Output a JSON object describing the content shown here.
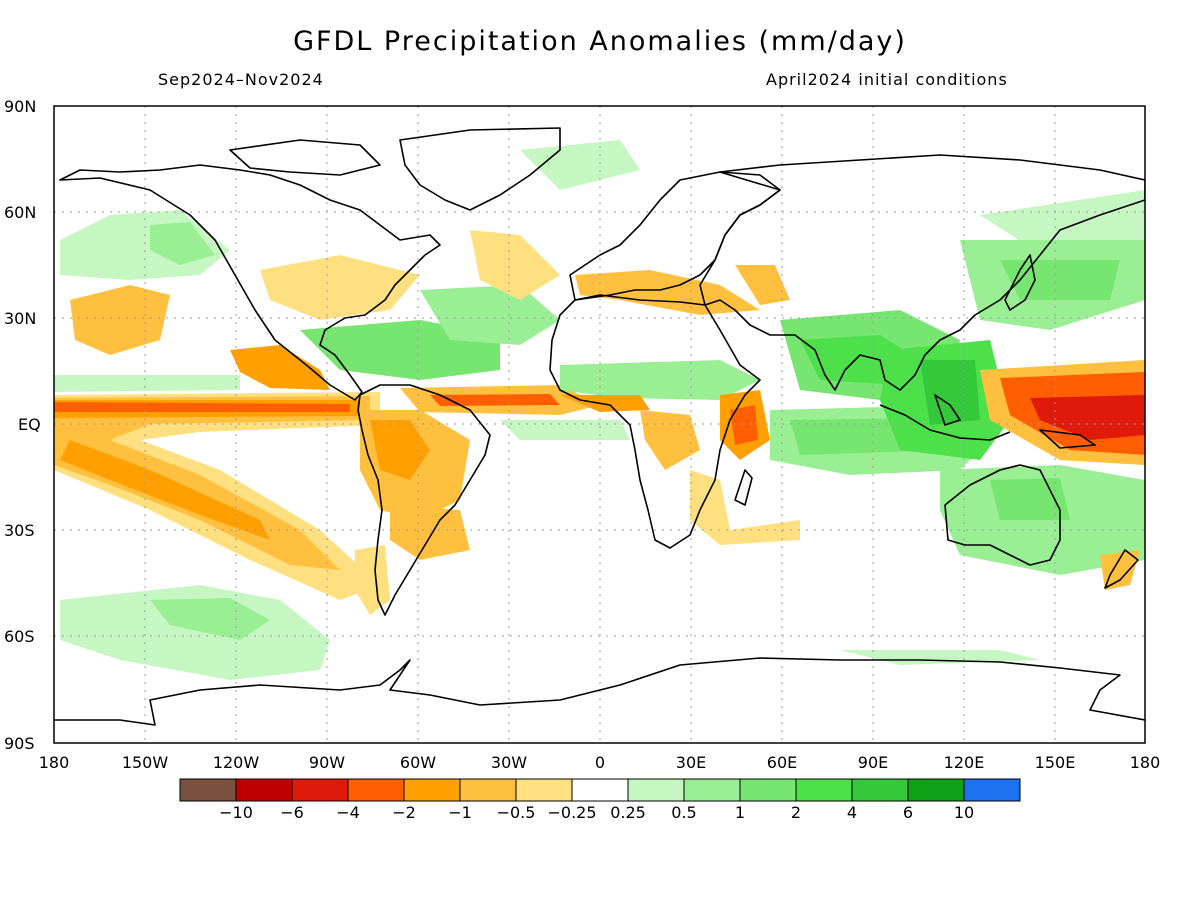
{
  "title": "GFDL Precipitation Anomalies (mm/day)",
  "season": "Sep2024–Nov2024",
  "init": "April2024 initial conditions",
  "lat_labels": [
    "90N",
    "60N",
    "30N",
    "EQ",
    "30S",
    "60S",
    "90S"
  ],
  "lon_labels": [
    "180",
    "150W",
    "120W",
    "90W",
    "60W",
    "30W",
    "0",
    "30E",
    "60E",
    "90E",
    "120E",
    "150E",
    "180"
  ],
  "legend": {
    "colors": [
      "#7a5040",
      "#c00000",
      "#e01a0a",
      "#ff5f00",
      "#ffa000",
      "#ffc040",
      "#ffe080",
      "#ffffff",
      "#c6f6c2",
      "#9aee94",
      "#76e670",
      "#4de04a",
      "#34c83a",
      "#10a018",
      "#1e72f0"
    ],
    "labels": [
      "−10",
      "−6",
      "−4",
      "−2",
      "−1",
      "−0.5",
      "−0.25",
      "0.25",
      "0.5",
      "1",
      "2",
      "4",
      "6",
      "10"
    ]
  },
  "anomaly_regions": [
    {
      "name": "central-pacific-dry-tongue",
      "color": "#ffc040"
    },
    {
      "name": "equatorial-pacific-dry-core",
      "color": "#ff5f00"
    },
    {
      "name": "western-pacific-dry",
      "color": "#e01a0a"
    },
    {
      "name": "maritime-continent-wet",
      "color": "#4de04a"
    },
    {
      "name": "indian-ocean-wet",
      "color": "#76e670"
    },
    {
      "name": "australia-wet",
      "color": "#9aee94"
    },
    {
      "name": "amazon-dry",
      "color": "#ffa000"
    },
    {
      "name": "north-pacific-dry",
      "color": "#ffc040"
    },
    {
      "name": "north-atlantic-dry",
      "color": "#ffe080"
    },
    {
      "name": "east-africa-dry",
      "color": "#ffa000"
    },
    {
      "name": "southern-ocean-wet",
      "color": "#9aee94"
    },
    {
      "name": "caribbean-wet",
      "color": "#76e670"
    }
  ]
}
